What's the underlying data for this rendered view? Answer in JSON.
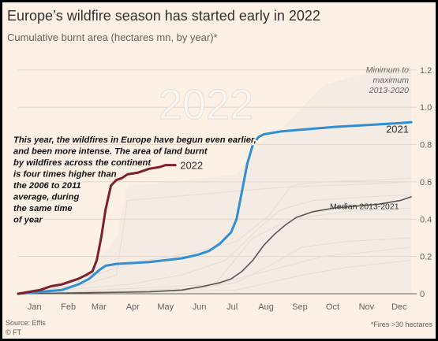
{
  "header": {
    "title": "Europe’s wildfire season has started early in 2022",
    "subtitle": "Cumulative burnt area (hectares mn, by year)*"
  },
  "footer": {
    "source": "Source: Effis",
    "credit": "© FT",
    "footnote": "*Fires >30 hectares"
  },
  "colors": {
    "background": "#fdf1e5",
    "line_2022": "#7d1f2c",
    "line_2021": "#2f8fd2",
    "median": "#5a5550",
    "other_years": "#e7dcd2",
    "band": "#f4ebe3"
  },
  "chart_data": {
    "type": "line",
    "title": "Europe’s wildfire season has started early in 2022",
    "subtitle": "Cumulative burnt area (hectares mn, by year)*",
    "x_unit": "day of year",
    "x_ticks": [
      {
        "x": 15,
        "label": "Jan"
      },
      {
        "x": 46,
        "label": "Feb"
      },
      {
        "x": 74,
        "label": "Mar"
      },
      {
        "x": 105,
        "label": "Apr"
      },
      {
        "x": 135,
        "label": "May"
      },
      {
        "x": 166,
        "label": "Jun"
      },
      {
        "x": 196,
        "label": "Jul"
      },
      {
        "x": 227,
        "label": "Aug"
      },
      {
        "x": 258,
        "label": "Sep"
      },
      {
        "x": 288,
        "label": "Oct"
      },
      {
        "x": 319,
        "label": "Nov"
      },
      {
        "x": 349,
        "label": "Dec"
      }
    ],
    "y_ticks": [
      0,
      0.2,
      0.4,
      0.6,
      0.8,
      1.0,
      1.2
    ],
    "y_tick_labels": [
      "0",
      "0.2",
      "0.4",
      "0.6",
      "0.8",
      "1.0",
      "1.2"
    ],
    "xlim": [
      0,
      365
    ],
    "ylim": [
      0,
      1.25
    ],
    "series": [
      {
        "name": "2022",
        "x": [
          0,
          10,
          20,
          30,
          40,
          50,
          55,
          62,
          68,
          72,
          76,
          80,
          85,
          90,
          95,
          100,
          110,
          120,
          130,
          135,
          144
        ],
        "values": [
          0.0,
          0.01,
          0.02,
          0.04,
          0.05,
          0.07,
          0.08,
          0.1,
          0.12,
          0.18,
          0.3,
          0.45,
          0.58,
          0.61,
          0.62,
          0.64,
          0.65,
          0.67,
          0.68,
          0.69,
          0.69
        ]
      },
      {
        "name": "2021",
        "x": [
          0,
          20,
          40,
          55,
          65,
          75,
          80,
          90,
          120,
          150,
          165,
          175,
          185,
          195,
          200,
          205,
          210,
          215,
          220,
          225,
          230,
          240,
          260,
          290,
          320,
          350,
          360
        ],
        "values": [
          0.0,
          0.01,
          0.02,
          0.05,
          0.08,
          0.13,
          0.15,
          0.16,
          0.17,
          0.19,
          0.21,
          0.23,
          0.27,
          0.33,
          0.4,
          0.55,
          0.7,
          0.8,
          0.84,
          0.855,
          0.86,
          0.87,
          0.88,
          0.895,
          0.905,
          0.915,
          0.92
        ]
      },
      {
        "name": "Median 2013-2021",
        "x": [
          0,
          120,
          150,
          170,
          185,
          195,
          205,
          215,
          225,
          235,
          245,
          255,
          270,
          290,
          310,
          330,
          350,
          360
        ],
        "values": [
          0.0,
          0.01,
          0.02,
          0.04,
          0.06,
          0.08,
          0.12,
          0.18,
          0.26,
          0.32,
          0.37,
          0.41,
          0.44,
          0.46,
          0.47,
          0.48,
          0.5,
          0.52
        ]
      }
    ],
    "background_series": [
      {
        "x": [
          0,
          80,
          120,
          160,
          200,
          230,
          250,
          280,
          330,
          360
        ],
        "values": [
          0.0,
          0.12,
          0.18,
          0.22,
          0.28,
          0.42,
          0.58,
          0.6,
          0.61,
          0.62
        ]
      },
      {
        "x": [
          0,
          100,
          150,
          190,
          220,
          240,
          270,
          320,
          360
        ],
        "values": [
          0.0,
          0.05,
          0.1,
          0.18,
          0.35,
          0.45,
          0.5,
          0.52,
          0.53
        ]
      },
      {
        "x": [
          0,
          60,
          90,
          100,
          140,
          200,
          240,
          280,
          330,
          360
        ],
        "values": [
          0.0,
          0.05,
          0.1,
          0.5,
          0.52,
          0.55,
          0.57,
          0.58,
          0.59,
          0.6
        ]
      },
      {
        "x": [
          0,
          150,
          200,
          230,
          260,
          300,
          360
        ],
        "values": [
          0.0,
          0.02,
          0.06,
          0.15,
          0.25,
          0.28,
          0.3
        ]
      },
      {
        "x": [
          0,
          170,
          200,
          240,
          280,
          330,
          360
        ],
        "values": [
          0.0,
          0.03,
          0.08,
          0.14,
          0.2,
          0.23,
          0.25
        ]
      },
      {
        "x": [
          0,
          180,
          215,
          250,
          300,
          360
        ],
        "values": [
          0.0,
          0.05,
          0.3,
          0.4,
          0.44,
          0.46
        ]
      },
      {
        "x": [
          0,
          200,
          230,
          260,
          300,
          360
        ],
        "values": [
          0.0,
          0.02,
          0.06,
          0.1,
          0.14,
          0.18
        ]
      }
    ],
    "range_band": {
      "label": [
        "Minimum to",
        "maximum",
        "2013-2020"
      ],
      "x": [
        0,
        60,
        90,
        100,
        140,
        200,
        220,
        240,
        280,
        330,
        360
      ],
      "upper": [
        0.0,
        0.08,
        0.3,
        0.58,
        0.6,
        0.64,
        0.8,
        0.88,
        1.12,
        1.2,
        1.2
      ],
      "lower": [
        0.0,
        0.0,
        0.0,
        0.0,
        0.0,
        0.0,
        0.0,
        0.0,
        0.0,
        0.0,
        0.0
      ]
    },
    "annotations": {
      "big_year": "2022",
      "text": [
        "This year, the wildfires in Europe have begun even earlier,",
        "and been more intense. The area of land burnt",
        "by wildfires across the continent",
        "is four times higher than",
        "the 2006 to 2011",
        "average, during",
        "the same time",
        "of year"
      ]
    }
  }
}
